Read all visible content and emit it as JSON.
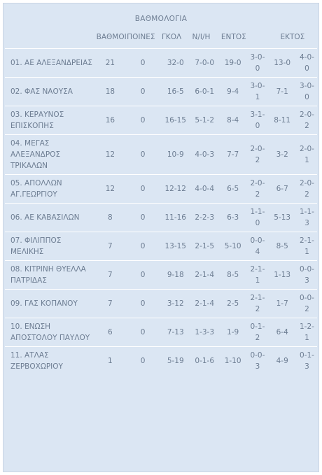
{
  "header": {
    "title": "ΒΑΘΜΟΛΟΓΙΑ"
  },
  "table": {
    "columns": [
      "ΒΑΘΜΟΙ",
      "ΠΟΙΝΕΣ",
      "ΓΚΟΛ",
      "Ν/Ι/Η",
      "ΕΝΤΟΣ",
      "ΕΚΤΟΣ"
    ],
    "rows": [
      [
        "01. ΑΕ ΑΛΕΞΑΝΔΡΕΙΑΣ",
        21,
        0,
        "32-0",
        "7-0-0",
        "19-0",
        "3-0-0",
        "13-0",
        "4-0-0"
      ],
      [
        "02. ΦΑΣ ΝΑΟΥΣΑ",
        18,
        0,
        "16-5",
        "6-0-1",
        "9-4",
        "3-0-1",
        "7-1",
        "3-0-0"
      ],
      [
        "03. ΚΕΡΑΥΝΟΣ ΕΠΙΣΚΟΠΗΣ",
        16,
        0,
        "16-15",
        "5-1-2",
        "8-4",
        "3-1-0",
        "8-11",
        "2-0-2"
      ],
      [
        "04. ΜΕΓΑΣ ΑΛΕΞΑΝΔΡΟΣ ΤΡΙΚΑΛΩΝ",
        12,
        0,
        "10-9",
        "4-0-3",
        "7-7",
        "2-0-2",
        "3-2",
        "2-0-1"
      ],
      [
        "05. ΑΠΟΛΛΩΝ ΑΓ.ΓΕΩΡΓΙΟΥ",
        12,
        0,
        "12-12",
        "4-0-4",
        "6-5",
        "2-0-2",
        "6-7",
        "2-0-2"
      ],
      [
        "06. ΑΕ ΚΑΒΑΣΙΛΩΝ",
        8,
        0,
        "11-16",
        "2-2-3",
        "6-3",
        "1-1-0",
        "5-13",
        "1-1-3"
      ],
      [
        "07. ΦΙΛΙΠΠΟΣ ΜΕΛΙΚΗΣ",
        7,
        0,
        "13-15",
        "2-1-5",
        "5-10",
        "0-0-4",
        "8-5",
        "2-1-1"
      ],
      [
        "08. ΚΙΤΡΙΝΗ ΘΥΕΛΛΑ ΠΑΤΡΙΔΑΣ",
        7,
        0,
        "9-18",
        "2-1-4",
        "8-5",
        "2-1-1",
        "1-13",
        "0-0-3"
      ],
      [
        "09. ΓΑΣ ΚΟΠΑΝΟΥ",
        7,
        0,
        "3-12",
        "2-1-4",
        "2-5",
        "2-1-2",
        "1-7",
        "0-0-2"
      ],
      [
        "10. ΕΝΩΣΗ ΑΠΟΣΤΟΛΟΥ ΠΑΥΛΟΥ",
        6,
        0,
        "7-13",
        "1-3-3",
        "1-9",
        "0-1-2",
        "6-4",
        "1-2-1"
      ],
      [
        "11. ΑΤΛΑΣ ΖΕΡΒΟΧΩΡΙΟΥ",
        1,
        0,
        "5-19",
        "0-1-6",
        "1-10",
        "0-0-3",
        "4-9",
        "0-1-3"
      ]
    ]
  }
}
